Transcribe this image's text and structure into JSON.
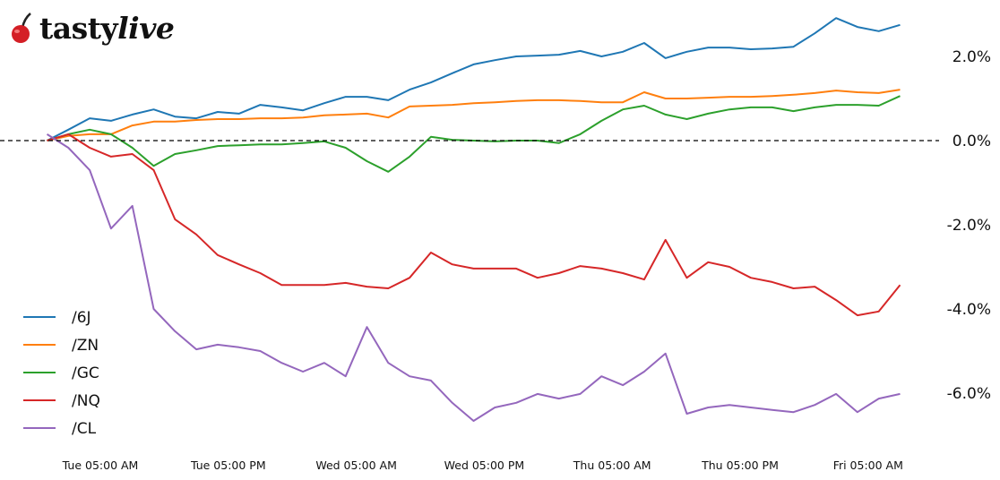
{
  "logo": {
    "brand": "tastylive",
    "part1": "tasty",
    "part2": "live"
  },
  "chart_data": {
    "type": "line",
    "title": "",
    "xlabel": "",
    "ylabel": "",
    "x_tick_labels": [
      "Tue 05:00 AM",
      "Tue 05:00 PM",
      "Wed 05:00 AM",
      "Wed 05:00 PM",
      "Thu 05:00 AM",
      "Thu 05:00 PM",
      "Fri 05:00 AM"
    ],
    "x_ticks": [
      "Tue 05:00",
      "Tue 17:00",
      "Wed 05:00",
      "Wed 17:00",
      "Thu 05:00",
      "Thu 17:00",
      "Fri 05:00"
    ],
    "y_tick_labels": [
      "2.0%",
      "0.0%",
      "-2.0%",
      "-4.0%",
      "-6.0%"
    ],
    "y_ticks": [
      2,
      0,
      -2,
      -4,
      -6
    ],
    "ylim": [
      -7.3,
      3.3
    ],
    "y_axis_side": "right",
    "reference_line": {
      "value": 0,
      "style": "dashed",
      "color": "#000000"
    },
    "grid": false,
    "legend_position": "bottom-left",
    "x": [
      "Tue 00:00",
      "Tue 02:00",
      "Tue 04:00",
      "Tue 06:00",
      "Tue 08:00",
      "Tue 10:00",
      "Tue 12:00",
      "Tue 14:00",
      "Tue 16:00",
      "Tue 18:00",
      "Tue 20:00",
      "Tue 22:00",
      "Wed 00:00",
      "Wed 02:00",
      "Wed 04:00",
      "Wed 06:00",
      "Wed 08:00",
      "Wed 10:00",
      "Wed 12:00",
      "Wed 14:00",
      "Wed 16:00",
      "Wed 18:00",
      "Wed 20:00",
      "Wed 22:00",
      "Thu 00:00",
      "Thu 02:00",
      "Thu 04:00",
      "Thu 06:00",
      "Thu 08:00",
      "Thu 10:00",
      "Thu 12:00",
      "Thu 14:00",
      "Thu 16:00",
      "Thu 18:00",
      "Thu 20:00",
      "Thu 22:00",
      "Fri 00:00",
      "Fri 02:00",
      "Fri 04:00",
      "Fri 06:00",
      "Fri 08:00"
    ],
    "series": [
      {
        "name": "/6J",
        "color": "#1f77b4",
        "values": [
          0,
          0.26,
          0.53,
          0.47,
          0.62,
          0.74,
          0.57,
          0.53,
          0.68,
          0.64,
          0.85,
          0.79,
          0.72,
          0.89,
          1.04,
          1.04,
          0.96,
          1.21,
          1.38,
          1.6,
          1.81,
          1.91,
          2.0,
          2.02,
          2.04,
          2.13,
          2.0,
          2.11,
          2.32,
          1.96,
          2.11,
          2.21,
          2.21,
          2.17,
          2.19,
          2.23,
          2.55,
          2.91,
          2.7,
          2.6,
          2.75
        ]
      },
      {
        "name": "/ZN",
        "color": "#ff7f0e",
        "values": [
          0,
          0.11,
          0.15,
          0.15,
          0.36,
          0.45,
          0.45,
          0.49,
          0.51,
          0.51,
          0.53,
          0.53,
          0.55,
          0.6,
          0.62,
          0.64,
          0.55,
          0.81,
          0.83,
          0.85,
          0.89,
          0.91,
          0.94,
          0.96,
          0.96,
          0.94,
          0.91,
          0.91,
          1.15,
          1.0,
          1.0,
          1.02,
          1.04,
          1.04,
          1.06,
          1.09,
          1.13,
          1.19,
          1.15,
          1.13,
          1.21
        ]
      },
      {
        "name": "/GC",
        "color": "#2ca02c",
        "values": [
          0,
          0.15,
          0.26,
          0.15,
          -0.17,
          -0.6,
          -0.32,
          -0.23,
          -0.13,
          -0.11,
          -0.09,
          -0.09,
          -0.06,
          -0.02,
          -0.17,
          -0.49,
          -0.74,
          -0.38,
          0.09,
          0.02,
          0,
          -0.02,
          0,
          0,
          -0.06,
          0.15,
          0.47,
          0.74,
          0.83,
          0.62,
          0.51,
          0.64,
          0.74,
          0.79,
          0.79,
          0.7,
          0.79,
          0.85,
          0.85,
          0.83,
          1.06
        ]
      },
      {
        "name": "/NQ",
        "color": "#d62728",
        "values": [
          0,
          0.15,
          -0.17,
          -0.38,
          -0.32,
          -0.7,
          -1.87,
          -2.23,
          -2.72,
          -2.94,
          -3.15,
          -3.43,
          -3.43,
          -3.43,
          -3.38,
          -3.47,
          -3.51,
          -3.26,
          -2.66,
          -2.94,
          -3.04,
          -3.04,
          -3.04,
          -3.26,
          -3.15,
          -2.98,
          -3.04,
          -3.15,
          -3.3,
          -2.36,
          -3.26,
          -2.89,
          -3.0,
          -3.26,
          -3.36,
          -3.51,
          -3.47,
          -3.79,
          -4.15,
          -4.06,
          -3.43
        ]
      },
      {
        "name": "/CL",
        "color": "#9467bd",
        "values": [
          0.15,
          -0.17,
          -0.7,
          -2.09,
          -1.55,
          -4.0,
          -4.53,
          -4.96,
          -4.85,
          -4.91,
          -5.0,
          -5.28,
          -5.49,
          -5.28,
          -5.6,
          -4.43,
          -5.28,
          -5.6,
          -5.7,
          -6.23,
          -6.66,
          -6.34,
          -6.23,
          -6.02,
          -6.13,
          -6.02,
          -5.6,
          -5.81,
          -5.49,
          -5.06,
          -6.49,
          -6.34,
          -6.28,
          -6.34,
          -6.4,
          -6.45,
          -6.28,
          -6.02,
          -6.45,
          -6.13,
          -6.02
        ]
      }
    ]
  }
}
